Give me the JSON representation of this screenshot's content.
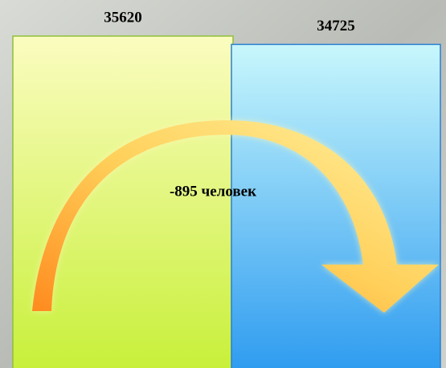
{
  "chart_data": {
    "type": "bar",
    "categories": [
      null,
      null
    ],
    "values": [
      35620,
      34725
    ],
    "colors": [
      [
        "#fbfcc0",
        "#c8f03a"
      ],
      [
        "#c8f7fc",
        "#2f9cf0"
      ]
    ],
    "annotation": "-895 человек"
  }
}
